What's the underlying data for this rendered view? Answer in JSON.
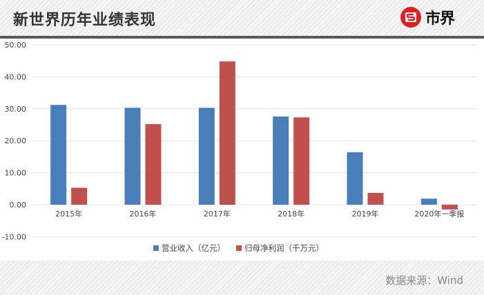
{
  "header": {
    "title": "新世界历年业绩表现",
    "logo_text": "市界",
    "logo_icon": "s-circle-logo-icon",
    "brand_color": "#e02020"
  },
  "footer": {
    "source": "数据来源：Wind"
  },
  "chart_data": {
    "type": "bar",
    "title": "新世界历年业绩表现",
    "categories": [
      "2015年",
      "2016年",
      "2017年",
      "2018年",
      "2019年",
      "2020年一季报"
    ],
    "series": [
      {
        "name": "营业收入（亿元）",
        "color": "#4a7ebb",
        "values": [
          31.2,
          30.3,
          30.3,
          27.6,
          16.4,
          1.9
        ]
      },
      {
        "name": "归母净利润（千万元）",
        "color": "#c0504d",
        "values": [
          5.3,
          25.2,
          44.8,
          27.3,
          3.7,
          -1.5
        ]
      }
    ],
    "yticks": [
      "50.00",
      "40.00",
      "30.00",
      "20.00",
      "10.00",
      "0.00",
      "-10.00"
    ],
    "ylim": [
      -10,
      50
    ],
    "xlabel": "",
    "ylabel": "",
    "grid": true,
    "legend_position": "bottom",
    "source": "数据来源：Wind"
  }
}
